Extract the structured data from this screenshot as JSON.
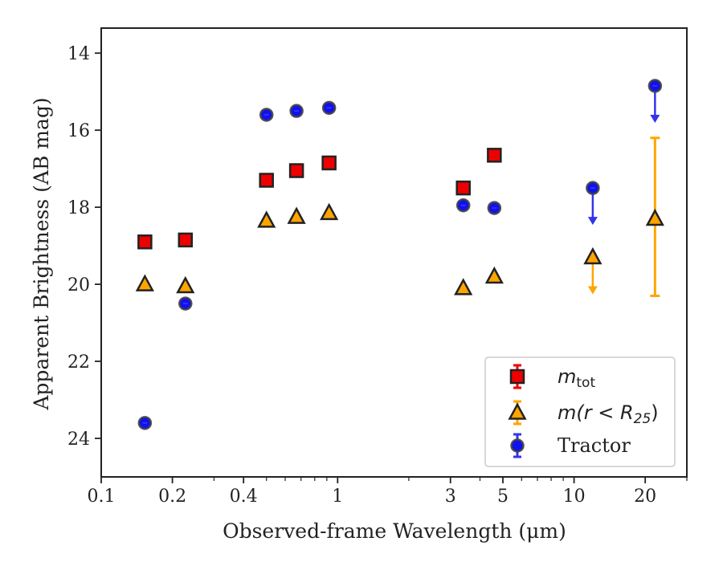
{
  "chart_data": {
    "type": "scatter",
    "title": "",
    "xlabel": "Observed-frame Wavelength (μm)",
    "ylabel": "Apparent Brightness (AB mag)",
    "x_scale": "log",
    "xlim": [
      0.1,
      30
    ],
    "ylim": [
      25,
      13.35
    ],
    "y_inverted": true,
    "x_ticks": [
      0.1,
      0.2,
      0.4,
      1,
      3,
      5,
      10,
      20
    ],
    "x_tick_labels": [
      "0.1",
      "0.2",
      "0.4",
      "1",
      "3",
      "5",
      "10",
      "20"
    ],
    "y_ticks": [
      14,
      16,
      18,
      20,
      22,
      24
    ],
    "y_tick_labels": [
      "14",
      "16",
      "18",
      "20",
      "22",
      "24"
    ],
    "grid": false,
    "legend_position": "lower right",
    "series": [
      {
        "name": "m_tot",
        "label_main": "m",
        "label_sub": "tot",
        "marker": "square",
        "color": "#ee0000",
        "edge_color": "#222222",
        "points": [
          {
            "x": 0.153,
            "y": 18.9
          },
          {
            "x": 0.227,
            "y": 18.85
          },
          {
            "x": 0.5,
            "y": 17.3
          },
          {
            "x": 0.67,
            "y": 17.05
          },
          {
            "x": 0.92,
            "y": 16.85
          },
          {
            "x": 3.4,
            "y": 17.5
          },
          {
            "x": 4.6,
            "y": 16.65
          }
        ]
      },
      {
        "name": "m(r < R25)",
        "label_main": "m(r < R",
        "label_sub": "25",
        "label_tail": ")",
        "marker": "triangle",
        "color": "#ffa500",
        "edge_color": "#222222",
        "points": [
          {
            "x": 0.153,
            "y": 20.0
          },
          {
            "x": 0.227,
            "y": 20.05
          },
          {
            "x": 0.5,
            "y": 18.35
          },
          {
            "x": 0.67,
            "y": 18.25
          },
          {
            "x": 0.92,
            "y": 18.15
          },
          {
            "x": 3.4,
            "y": 20.1
          },
          {
            "x": 4.6,
            "y": 19.8
          },
          {
            "x": 12.0,
            "y": 19.3,
            "upper_limit": true
          },
          {
            "x": 22.0,
            "y": 18.3,
            "yerr": [
              16.2,
              20.3
            ]
          }
        ]
      },
      {
        "name": "Tractor",
        "label_main": "Tractor",
        "marker": "circle",
        "color": "#1111ee",
        "edge_color": "#444444",
        "points": [
          {
            "x": 0.153,
            "y": 23.6
          },
          {
            "x": 0.227,
            "y": 20.5
          },
          {
            "x": 0.5,
            "y": 15.6
          },
          {
            "x": 0.67,
            "y": 15.5
          },
          {
            "x": 0.92,
            "y": 15.42
          },
          {
            "x": 3.4,
            "y": 17.95
          },
          {
            "x": 4.6,
            "y": 18.02
          },
          {
            "x": 12.0,
            "y": 17.5,
            "upper_limit": true
          },
          {
            "x": 22.0,
            "y": 14.85,
            "upper_limit": true
          }
        ]
      }
    ]
  }
}
